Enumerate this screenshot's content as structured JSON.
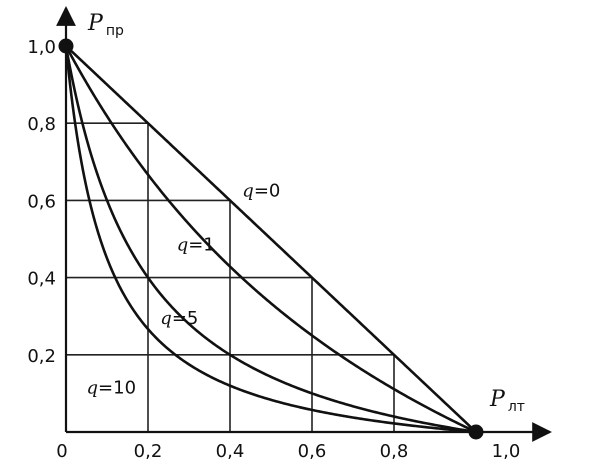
{
  "chart_data": {
    "type": "line",
    "x_axis": {
      "symbol": "P",
      "subscript": "лт",
      "ticks": [
        "0",
        "0,2",
        "0,4",
        "0,6",
        "0,8",
        "1,0"
      ],
      "range": [
        0,
        1
      ]
    },
    "y_axis": {
      "symbol": "P",
      "subscript": "пр",
      "ticks": [
        "0,2",
        "0,4",
        "0,6",
        "0,8",
        "1,0"
      ],
      "range": [
        0,
        1
      ]
    },
    "grid_lines": {
      "vertical": [
        {
          "x": 0.2,
          "y_top": 0.8
        },
        {
          "x": 0.4,
          "y_top": 0.6
        },
        {
          "x": 0.6,
          "y_top": 0.4
        },
        {
          "x": 0.8,
          "y_top": 0.2
        }
      ],
      "horizontal": [
        {
          "y": 0.8,
          "x_right": 0.2
        },
        {
          "y": 0.6,
          "x_right": 0.4
        },
        {
          "y": 0.4,
          "x_right": 0.6
        },
        {
          "y": 0.2,
          "x_right": 0.8
        }
      ]
    },
    "endpoints": [
      {
        "x": 0,
        "y": 1
      },
      {
        "x": 1,
        "y": 0
      }
    ],
    "series": [
      {
        "name": "q=0",
        "q": "0",
        "label_at": [
          0.43,
          0.61
        ]
      },
      {
        "name": "q=1",
        "q": "1",
        "label_at": [
          0.27,
          0.47
        ]
      },
      {
        "name": "q=5",
        "q": "5",
        "label_at": [
          0.23,
          0.28
        ]
      },
      {
        "name": "q=10",
        "q": "10",
        "label_at": [
          0.05,
          0.1
        ]
      }
    ],
    "q_values": [
      0,
      1,
      5,
      10
    ]
  }
}
